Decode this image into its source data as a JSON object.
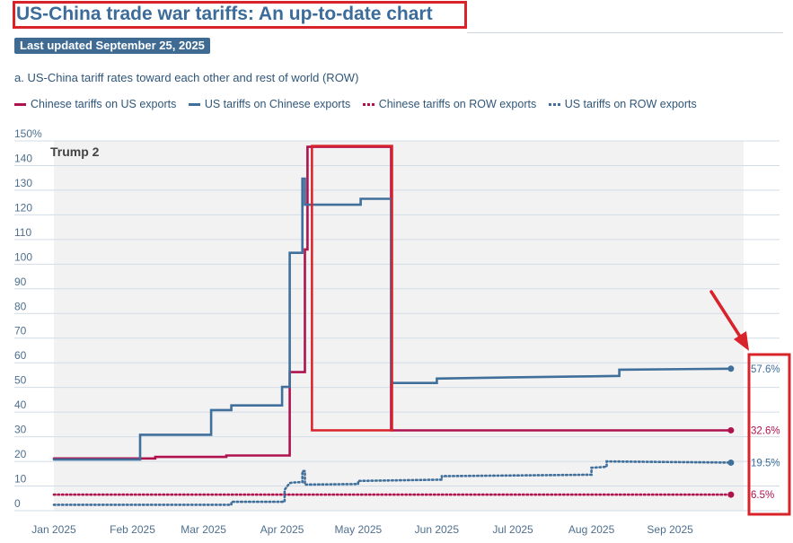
{
  "header": {
    "title": "US-China trade war tariffs: An up-to-date chart",
    "updated": "Last updated September 25, 2025",
    "subtitle": "a. US-China tariff rates toward each other and rest of world (ROW)"
  },
  "legend": [
    {
      "label": "Chinese tariffs on US exports",
      "style": "solid",
      "color": "#b0124e"
    },
    {
      "label": "US tariffs on Chinese exports",
      "style": "solid",
      "color": "#3f6f9a"
    },
    {
      "label": "Chinese tariffs on ROW exports",
      "style": "dotted",
      "color": "#b0124e"
    },
    {
      "label": "US tariffs on ROW exports",
      "style": "dotted",
      "color": "#3f6f9a"
    }
  ],
  "annotation": "Trump 2",
  "end_labels": {
    "us_on_china": "57.6%",
    "china_on_us": "32.6%",
    "us_on_row": "19.5%",
    "china_on_row": "6.5%"
  },
  "colors": {
    "china": "#b0124e",
    "us": "#3f6f9a",
    "highlight": "#d9232a",
    "shade": "#f2f2f2"
  },
  "chart_data": {
    "type": "line",
    "title": "a. US-China tariff rates toward each other and rest of world (ROW)",
    "x_type": "date",
    "xlim": [
      "2025-01-01",
      "2025-09-30"
    ],
    "x_ticks": [
      "Jan 2025",
      "Feb 2025",
      "Mar 2025",
      "Apr 2025",
      "May 2025",
      "Jun 2025",
      "Jul 2025",
      "Aug 2025",
      "Sep 2025"
    ],
    "ylim": [
      0,
      150
    ],
    "y_ticks": [
      "0",
      "10",
      "20",
      "30",
      "40",
      "50",
      "60",
      "70",
      "80",
      "90",
      "100",
      "110",
      "120",
      "130",
      "140",
      "150%"
    ],
    "grid": true,
    "series": [
      {
        "name": "Chinese tariffs on US exports",
        "line": "solid",
        "points": [
          [
            "2025-01-01",
            21.2
          ],
          [
            "2025-02-10",
            21.2
          ],
          [
            "2025-02-10",
            21.8
          ],
          [
            "2025-03-10",
            21.8
          ],
          [
            "2025-03-10",
            22.4
          ],
          [
            "2025-04-04",
            22.4
          ],
          [
            "2025-04-04",
            56.2
          ],
          [
            "2025-04-10",
            56.2
          ],
          [
            "2025-04-10",
            106
          ],
          [
            "2025-04-11",
            106
          ],
          [
            "2025-04-11",
            147.6
          ],
          [
            "2025-05-14",
            147.6
          ],
          [
            "2025-05-14",
            32.6
          ],
          [
            "2025-09-25",
            32.6
          ]
        ]
      },
      {
        "name": "US tariffs on Chinese exports",
        "line": "solid",
        "points": [
          [
            "2025-01-01",
            20.8
          ],
          [
            "2025-02-04",
            20.8
          ],
          [
            "2025-02-04",
            30.8
          ],
          [
            "2025-03-04",
            30.8
          ],
          [
            "2025-03-04",
            40.8
          ],
          [
            "2025-03-12",
            40.8
          ],
          [
            "2025-03-12",
            42.7
          ],
          [
            "2025-04-01",
            42.7
          ],
          [
            "2025-04-01",
            50.2
          ],
          [
            "2025-04-04",
            50.2
          ],
          [
            "2025-04-04",
            104.6
          ],
          [
            "2025-04-09",
            104.6
          ],
          [
            "2025-04-09",
            134.7
          ],
          [
            "2025-04-10",
            134.7
          ],
          [
            "2025-04-10",
            124.1
          ],
          [
            "2025-05-02",
            124.1
          ],
          [
            "2025-05-02",
            126.5
          ],
          [
            "2025-05-14",
            126.5
          ],
          [
            "2025-05-14",
            51.8
          ],
          [
            "2025-06-01",
            51.8
          ],
          [
            "2025-06-01",
            53.6
          ],
          [
            "2025-07-01",
            54.1
          ],
          [
            "2025-08-01",
            54.5
          ],
          [
            "2025-08-12",
            54.7
          ],
          [
            "2025-08-12",
            57.2
          ],
          [
            "2025-09-25",
            57.6
          ]
        ]
      },
      {
        "name": "Chinese tariffs on ROW exports",
        "line": "dotted",
        "points": [
          [
            "2025-01-01",
            6.5
          ],
          [
            "2025-09-25",
            6.5
          ]
        ]
      },
      {
        "name": "US tariffs on ROW exports",
        "line": "dotted",
        "points": [
          [
            "2025-01-01",
            2.4
          ],
          [
            "2025-03-12",
            2.4
          ],
          [
            "2025-03-12",
            3.6
          ],
          [
            "2025-04-02",
            3.6
          ],
          [
            "2025-04-02",
            8.5
          ],
          [
            "2025-04-04",
            11.2
          ],
          [
            "2025-04-05",
            11.4
          ],
          [
            "2025-04-09",
            11.6
          ],
          [
            "2025-04-09",
            16.1
          ],
          [
            "2025-04-10",
            16.1
          ],
          [
            "2025-04-10",
            10.6
          ],
          [
            "2025-05-01",
            10.8
          ],
          [
            "2025-05-01",
            12.1
          ],
          [
            "2025-06-03",
            12.6
          ],
          [
            "2025-06-03",
            14.0
          ],
          [
            "2025-08-01",
            14.6
          ],
          [
            "2025-08-01",
            17.4
          ],
          [
            "2025-08-07",
            17.8
          ],
          [
            "2025-08-07",
            20.0
          ],
          [
            "2025-09-25",
            19.5
          ]
        ]
      }
    ]
  }
}
